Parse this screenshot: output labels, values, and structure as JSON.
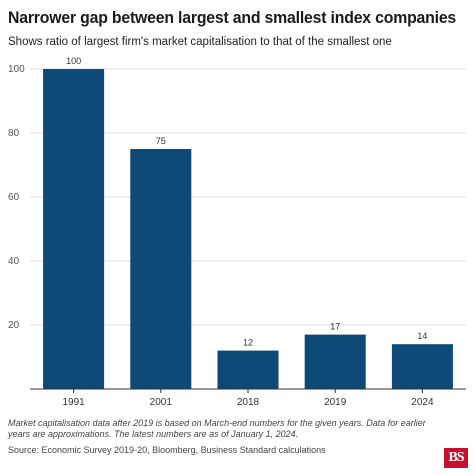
{
  "header": {
    "title": "Narrower gap between largest and smallest index companies",
    "subtitle": "Shows ratio of largest firm's market capitalisation to that of the smallest one"
  },
  "chart_data": {
    "type": "bar",
    "title": "Narrower gap between largest and smallest index companies",
    "subtitle": "Shows ratio of largest firm's market capitalisation to that of the smallest one",
    "categories": [
      "1991",
      "2001",
      "2018",
      "2019",
      "2024"
    ],
    "values": [
      100,
      75,
      12,
      17,
      14
    ],
    "data_labels": [
      "100",
      "75",
      "12",
      "17",
      "14"
    ],
    "xlabel": "",
    "ylabel": "",
    "ylim": [
      0,
      100
    ],
    "yticks": [
      20,
      40,
      60,
      80,
      100
    ],
    "grid": true,
    "legend": "none",
    "bar_color": "#0d4a78"
  },
  "footer": {
    "note": "Market capitalisation data after 2019 is based on March-end numbers for the given years. Data for earlier years are approximations. The latest numbers are as of January 1, 2024.",
    "source": "Source: Economic Survey 2019-20, Bloomberg, Business Standard calculations",
    "logo": "BS"
  },
  "colors": {
    "bar": "#0d4a78",
    "grid": "#dddddd",
    "axis": "#333333",
    "logo_bg": "#c8102e"
  }
}
